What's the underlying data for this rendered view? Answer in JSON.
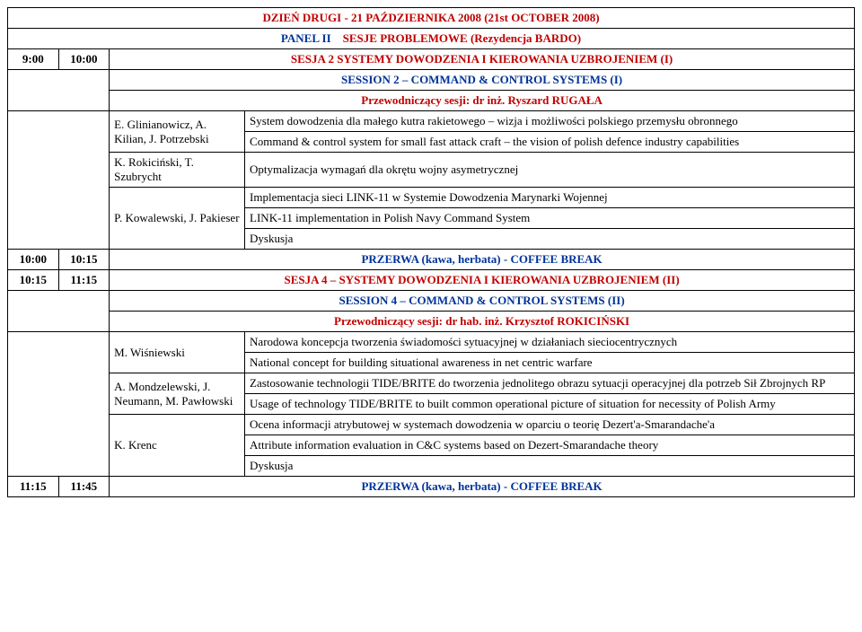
{
  "colors": {
    "text": "#000000",
    "red": "#c00000",
    "blue": "#003399",
    "border": "#000000",
    "background": "#ffffff"
  },
  "font": {
    "family": "Times New Roman",
    "size_pt": 10
  },
  "day_header": "DZIEŃ DRUGI - 21 PAŹDZIERNIKA 2008 (21st OCTOBER 2008)",
  "panel_left": "PANEL II",
  "panel_right": "SESJE PROBLEMOWE (Rezydencja BARDO)",
  "rows": [
    {
      "t1": "9:00",
      "t2": "10:00",
      "title": "SESJA 2 SYSTEMY DOWODZENIA I KIEROWANIA UZBROJENIEM (I)"
    }
  ],
  "session2_en": "SESSION 2 – COMMAND & CONTROL SYSTEMS (I)",
  "chair2": "Przewodniczący sesji: dr inż. Ryszard RUGAŁA",
  "talk1": {
    "authors": "E. Glinianowicz, A. Kilian, J. Potrzebski",
    "pl": "System dowodzenia dla małego kutra rakietowego – wizja i możliwości polskiego przemysłu obronnego",
    "en": "Command & control system for small fast attack craft – the vision of polish defence industry capabilities"
  },
  "talk2": {
    "authors": "K. Rokiciński, T. Szubrycht",
    "pl": "Optymalizacja wymagań dla okrętu wojny asymetrycznej"
  },
  "talk3": {
    "authors": "P. Kowalewski, J. Pakieser",
    "pl": "Implementacja sieci LINK-11 w Systemie Dowodzenia Marynarki Wojennej",
    "en": "LINK-11 implementation in Polish Navy Command System"
  },
  "dyskusja": "Dyskusja",
  "break1": {
    "t1": "10:00",
    "t2": "10:15",
    "label": "PRZERWA (kawa, herbata) - COFFEE BREAK"
  },
  "session4": {
    "t1": "10:15",
    "t2": "11:15",
    "title": "SESJA 4 – SYSTEMY DOWODZENIA I KIEROWANIA UZBROJENIEM (II)",
    "en": "SESSION 4 – COMMAND & CONTROL SYSTEMS (II)",
    "chair": "Przewodniczący sesji: dr hab. inż. Krzysztof ROKICIŃSKI"
  },
  "talk4": {
    "authors": "M. Wiśniewski",
    "pl": "Narodowa koncepcja tworzenia świadomości sytuacyjnej w działaniach sieciocentrycznych",
    "en": "National concept for building situational awareness in net centric warfare"
  },
  "talk5": {
    "authors": "A. Mondzelewski, J. Neumann, M. Pawłowski",
    "pl": "Zastosowanie technologii TIDE/BRITE do tworzenia jednolitego obrazu sytuacji operacyjnej dla potrzeb Sił Zbrojnych RP",
    "en": "Usage of technology TIDE/BRITE to built common operational picture of situation for necessity of Polish Army"
  },
  "talk6": {
    "authors": "K. Krenc",
    "pl": "Ocena informacji atrybutowej  w systemach dowodzenia w oparciu o teorię Dezert'a-Smarandache'a",
    "en": "Attribute information evaluation in C&C systems based on Dezert-Smarandache theory"
  },
  "break2": {
    "t1": "11:15",
    "t2": "11:45",
    "label": "PRZERWA (kawa, herbata) - COFFEE BREAK"
  }
}
